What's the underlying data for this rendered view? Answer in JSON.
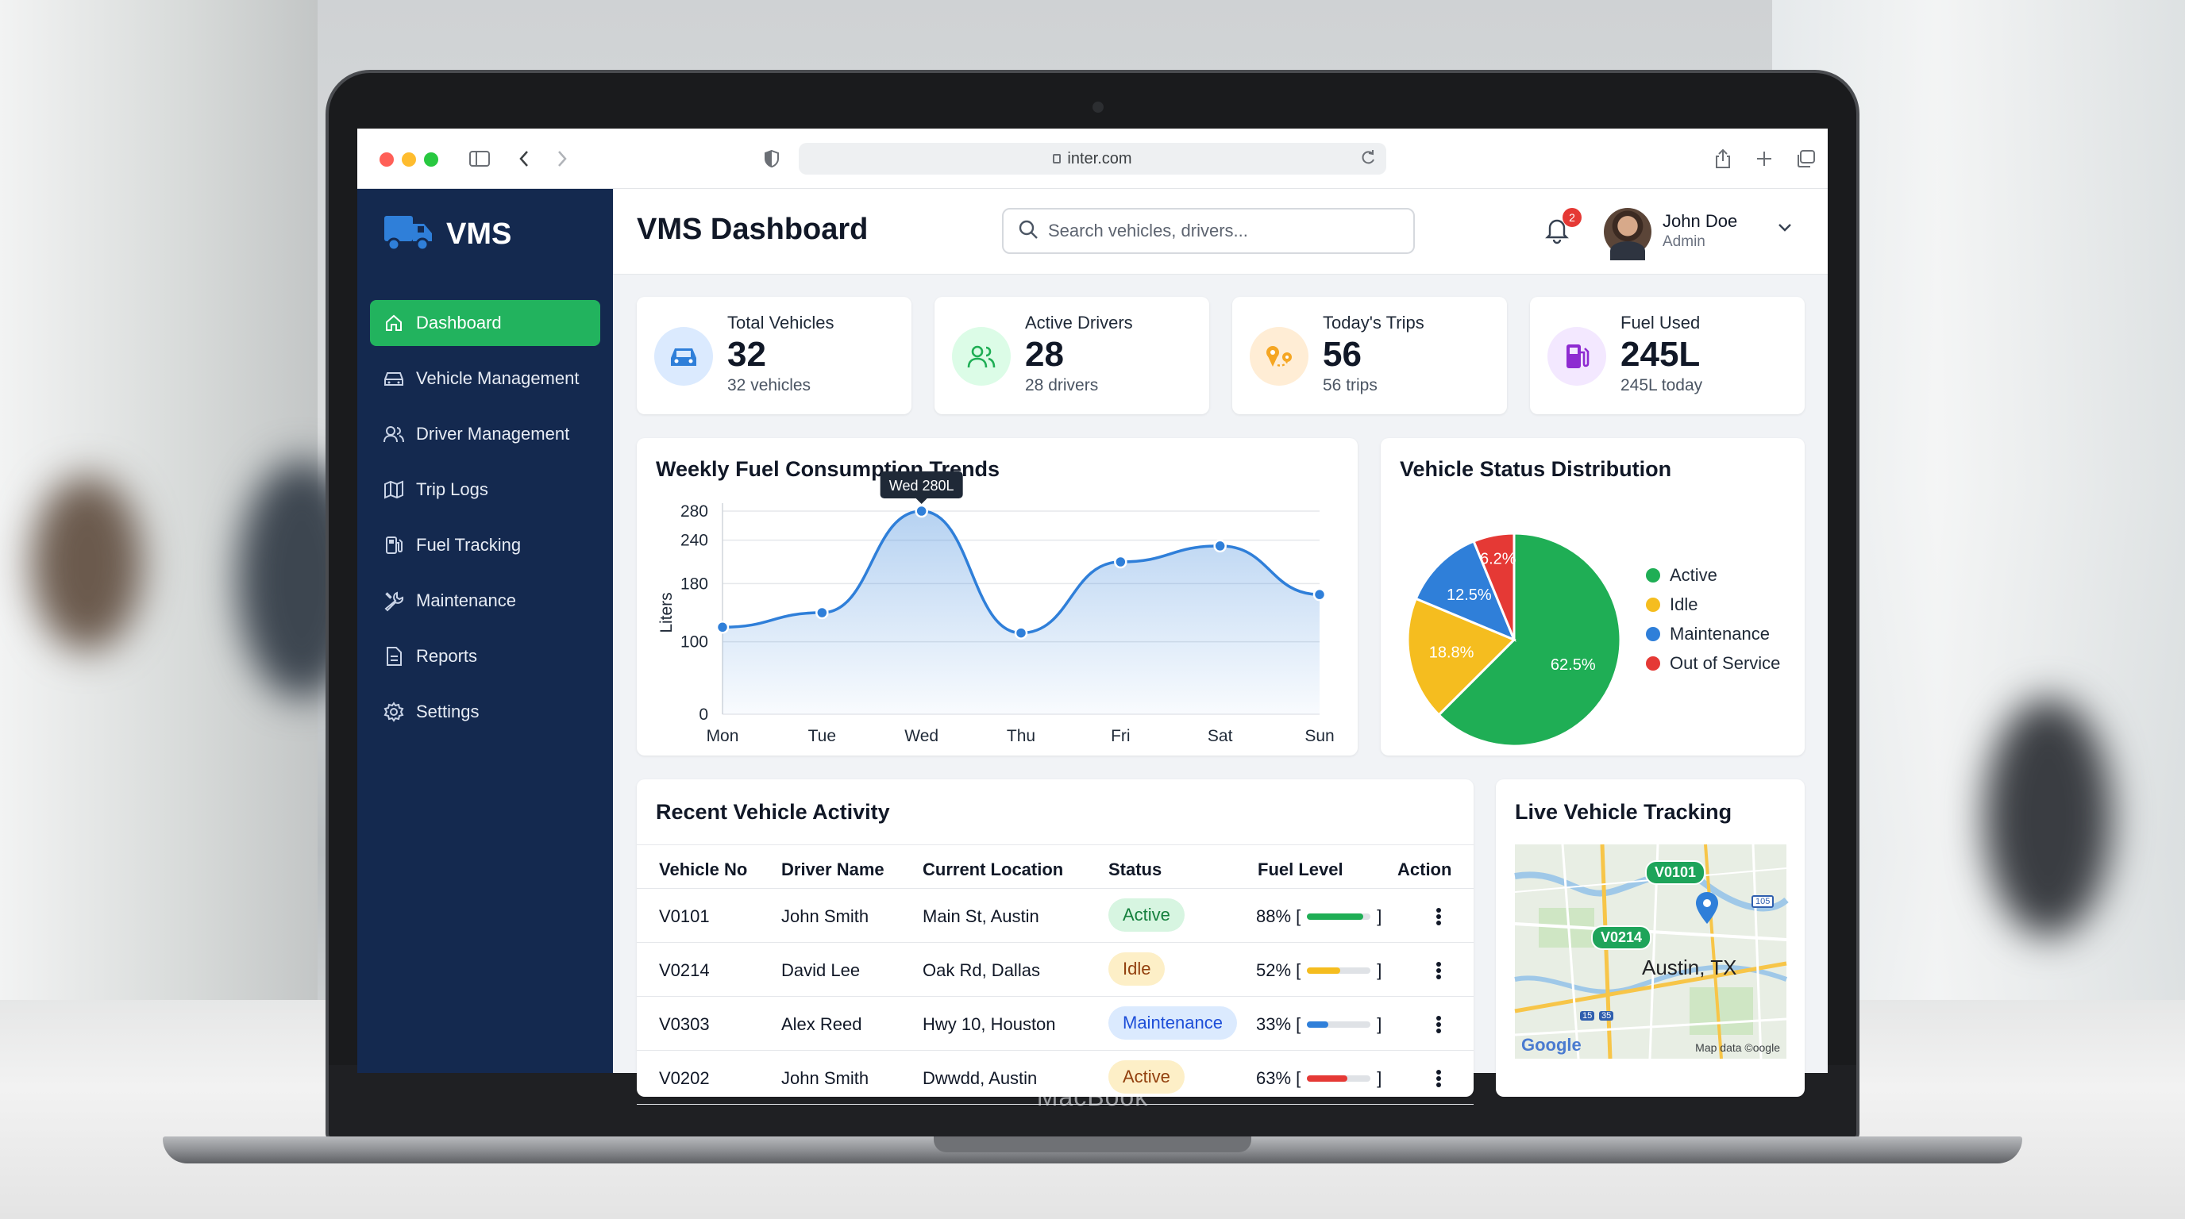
{
  "browser": {
    "url": "inter.com"
  },
  "brand": {
    "name": "VMS"
  },
  "sidebar": {
    "items": [
      {
        "label": "Dashboard",
        "icon": "home-icon",
        "active": true
      },
      {
        "label": "Vehicle Management",
        "icon": "car-icon"
      },
      {
        "label": "Driver Management",
        "icon": "users-icon"
      },
      {
        "label": "Trip Logs",
        "icon": "map-icon"
      },
      {
        "label": "Fuel Tracking",
        "icon": "fuel-icon"
      },
      {
        "label": "Maintenance",
        "icon": "wrench-icon"
      },
      {
        "label": "Reports",
        "icon": "document-icon"
      },
      {
        "label": "Settings",
        "icon": "gear-icon"
      }
    ]
  },
  "header": {
    "title": "VMS Dashboard",
    "search_placeholder": "Search vehicles, drivers...",
    "notifications": "2",
    "user_name": "John Doe",
    "user_role": "Admin"
  },
  "stats": [
    {
      "label": "Total Vehicles",
      "value": "32",
      "sub": "32 vehicles",
      "color": "#dbeafe",
      "icon": "car-icon"
    },
    {
      "label": "Active Drivers",
      "value": "28",
      "sub": "28 drivers",
      "color": "#dcfce7",
      "icon": "users-icon"
    },
    {
      "label": "Today's Trips",
      "value": "56",
      "sub": "56 trips",
      "color": "#ffedd5",
      "icon": "route-icon"
    },
    {
      "label": "Fuel Used",
      "value": "245L",
      "sub": "245L today",
      "color": "#f3e8ff",
      "icon": "fuel-icon"
    }
  ],
  "fuel_chart": {
    "title": "Weekly Fuel Consumption Trends",
    "tooltip": "Wed 280L"
  },
  "status_chart": {
    "title": "Vehicle Status Distribution",
    "slice_labels": [
      "62.5%",
      "18.8%",
      "12.5%",
      "6.2%"
    ]
  },
  "chart_data": [
    {
      "type": "area",
      "title": "Weekly Fuel Consumption Trends",
      "ylabel": "Liters",
      "categories": [
        "Mon",
        "Tue",
        "Wed",
        "Thu",
        "Fri",
        "Sat",
        "Sun"
      ],
      "values": [
        120,
        140,
        280,
        112,
        210,
        232,
        165
      ],
      "yticks": [
        0,
        100,
        180,
        240,
        280
      ],
      "ylim": [
        0,
        280
      ],
      "color": "#2f7fd9"
    },
    {
      "type": "pie",
      "title": "Vehicle Status Distribution",
      "categories": [
        "Active",
        "Idle",
        "Maintenance",
        "Out of Service"
      ],
      "values": [
        62.5,
        18.8,
        12.5,
        6.2
      ],
      "colors": [
        "#1fae55",
        "#f5bd1f",
        "#2f7fd9",
        "#e53935"
      ],
      "legend": "right"
    }
  ],
  "activity": {
    "title": "Recent Vehicle Activity",
    "columns": [
      "Vehicle No",
      "Driver Name",
      "Current Location",
      "Status",
      "Fuel Level",
      "Action"
    ],
    "rows": [
      {
        "vehicle": "V0101",
        "driver": "John Smith",
        "location": "Main St, Austin",
        "status": "Active",
        "fuel": "88% [",
        "fuel_pct": 88,
        "fuel_close": "]",
        "bar_color": "#1fae55",
        "pill_bg": "#d7f5e1",
        "pill_fg": "#15803d"
      },
      {
        "vehicle": "V0214",
        "driver": "David Lee",
        "location": "Oak Rd, Dallas",
        "status": "Idle",
        "fuel": "52% [",
        "fuel_pct": 52,
        "fuel_close": "]",
        "bar_color": "#f5bd1f",
        "pill_bg": "#fdefc7",
        "pill_fg": "#92400e"
      },
      {
        "vehicle": "V0303",
        "driver": "Alex Reed",
        "location": "Hwy 10, Houston",
        "status": "Maintenance",
        "fuel": "33% [",
        "fuel_pct": 33,
        "fuel_close": "]",
        "bar_color": "#2f7fd9",
        "pill_bg": "#dbeafe",
        "pill_fg": "#1d4ed8"
      },
      {
        "vehicle": "V0202",
        "driver": "John Smith",
        "location": "Dwwdd, Austin",
        "status": "Active",
        "fuel": "63% [",
        "fuel_pct": 63,
        "fuel_close": "]",
        "bar_color": "#e53935",
        "pill_bg": "#fdefc7",
        "pill_fg": "#92400e"
      }
    ]
  },
  "tracking": {
    "title": "Live Vehicle Tracking",
    "markers": [
      "V0101",
      "V0214"
    ],
    "city": "Austin, TX",
    "provider": "Google",
    "attribution": "Map data ©oogle",
    "shields": [
      "105",
      "15",
      "35"
    ]
  },
  "laptop": {
    "label": "MacBook"
  }
}
